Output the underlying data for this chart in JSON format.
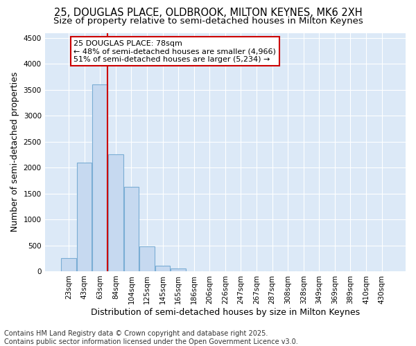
{
  "title_line1": "25, DOUGLAS PLACE, OLDBROOK, MILTON KEYNES, MK6 2XH",
  "title_line2": "Size of property relative to semi-detached houses in Milton Keynes",
  "xlabel": "Distribution of semi-detached houses by size in Milton Keynes",
  "ylabel": "Number of semi-detached properties",
  "categories": [
    "23sqm",
    "43sqm",
    "63sqm",
    "84sqm",
    "104sqm",
    "125sqm",
    "145sqm",
    "165sqm",
    "186sqm",
    "206sqm",
    "226sqm",
    "247sqm",
    "267sqm",
    "287sqm",
    "308sqm",
    "328sqm",
    "349sqm",
    "369sqm",
    "389sqm",
    "410sqm",
    "430sqm"
  ],
  "values": [
    250,
    2100,
    3600,
    2250,
    1625,
    475,
    100,
    50,
    0,
    0,
    0,
    0,
    0,
    0,
    0,
    0,
    0,
    0,
    0,
    0,
    0
  ],
  "bar_color": "#c6d9f0",
  "bar_edge_color": "#7aadd4",
  "vline_color": "#cc0000",
  "vline_pos": 2.5,
  "ylim": [
    0,
    4600
  ],
  "yticks": [
    0,
    500,
    1000,
    1500,
    2000,
    2500,
    3000,
    3500,
    4000,
    4500
  ],
  "annotation_title": "25 DOUGLAS PLACE: 78sqm",
  "annotation_line2": "← 48% of semi-detached houses are smaller (4,966)",
  "annotation_line3": "51% of semi-detached houses are larger (5,234) →",
  "annotation_box_color": "#ffffff",
  "annotation_box_edge": "#cc0000",
  "fig_bg_color": "#ffffff",
  "plot_bg_color": "#dce9f7",
  "footer_line1": "Contains HM Land Registry data © Crown copyright and database right 2025.",
  "footer_line2": "Contains public sector information licensed under the Open Government Licence v3.0.",
  "grid_color": "#ffffff",
  "title_fontsize": 10.5,
  "subtitle_fontsize": 9.5,
  "axis_label_fontsize": 9,
  "tick_fontsize": 7.5,
  "annotation_fontsize": 8,
  "footer_fontsize": 7
}
